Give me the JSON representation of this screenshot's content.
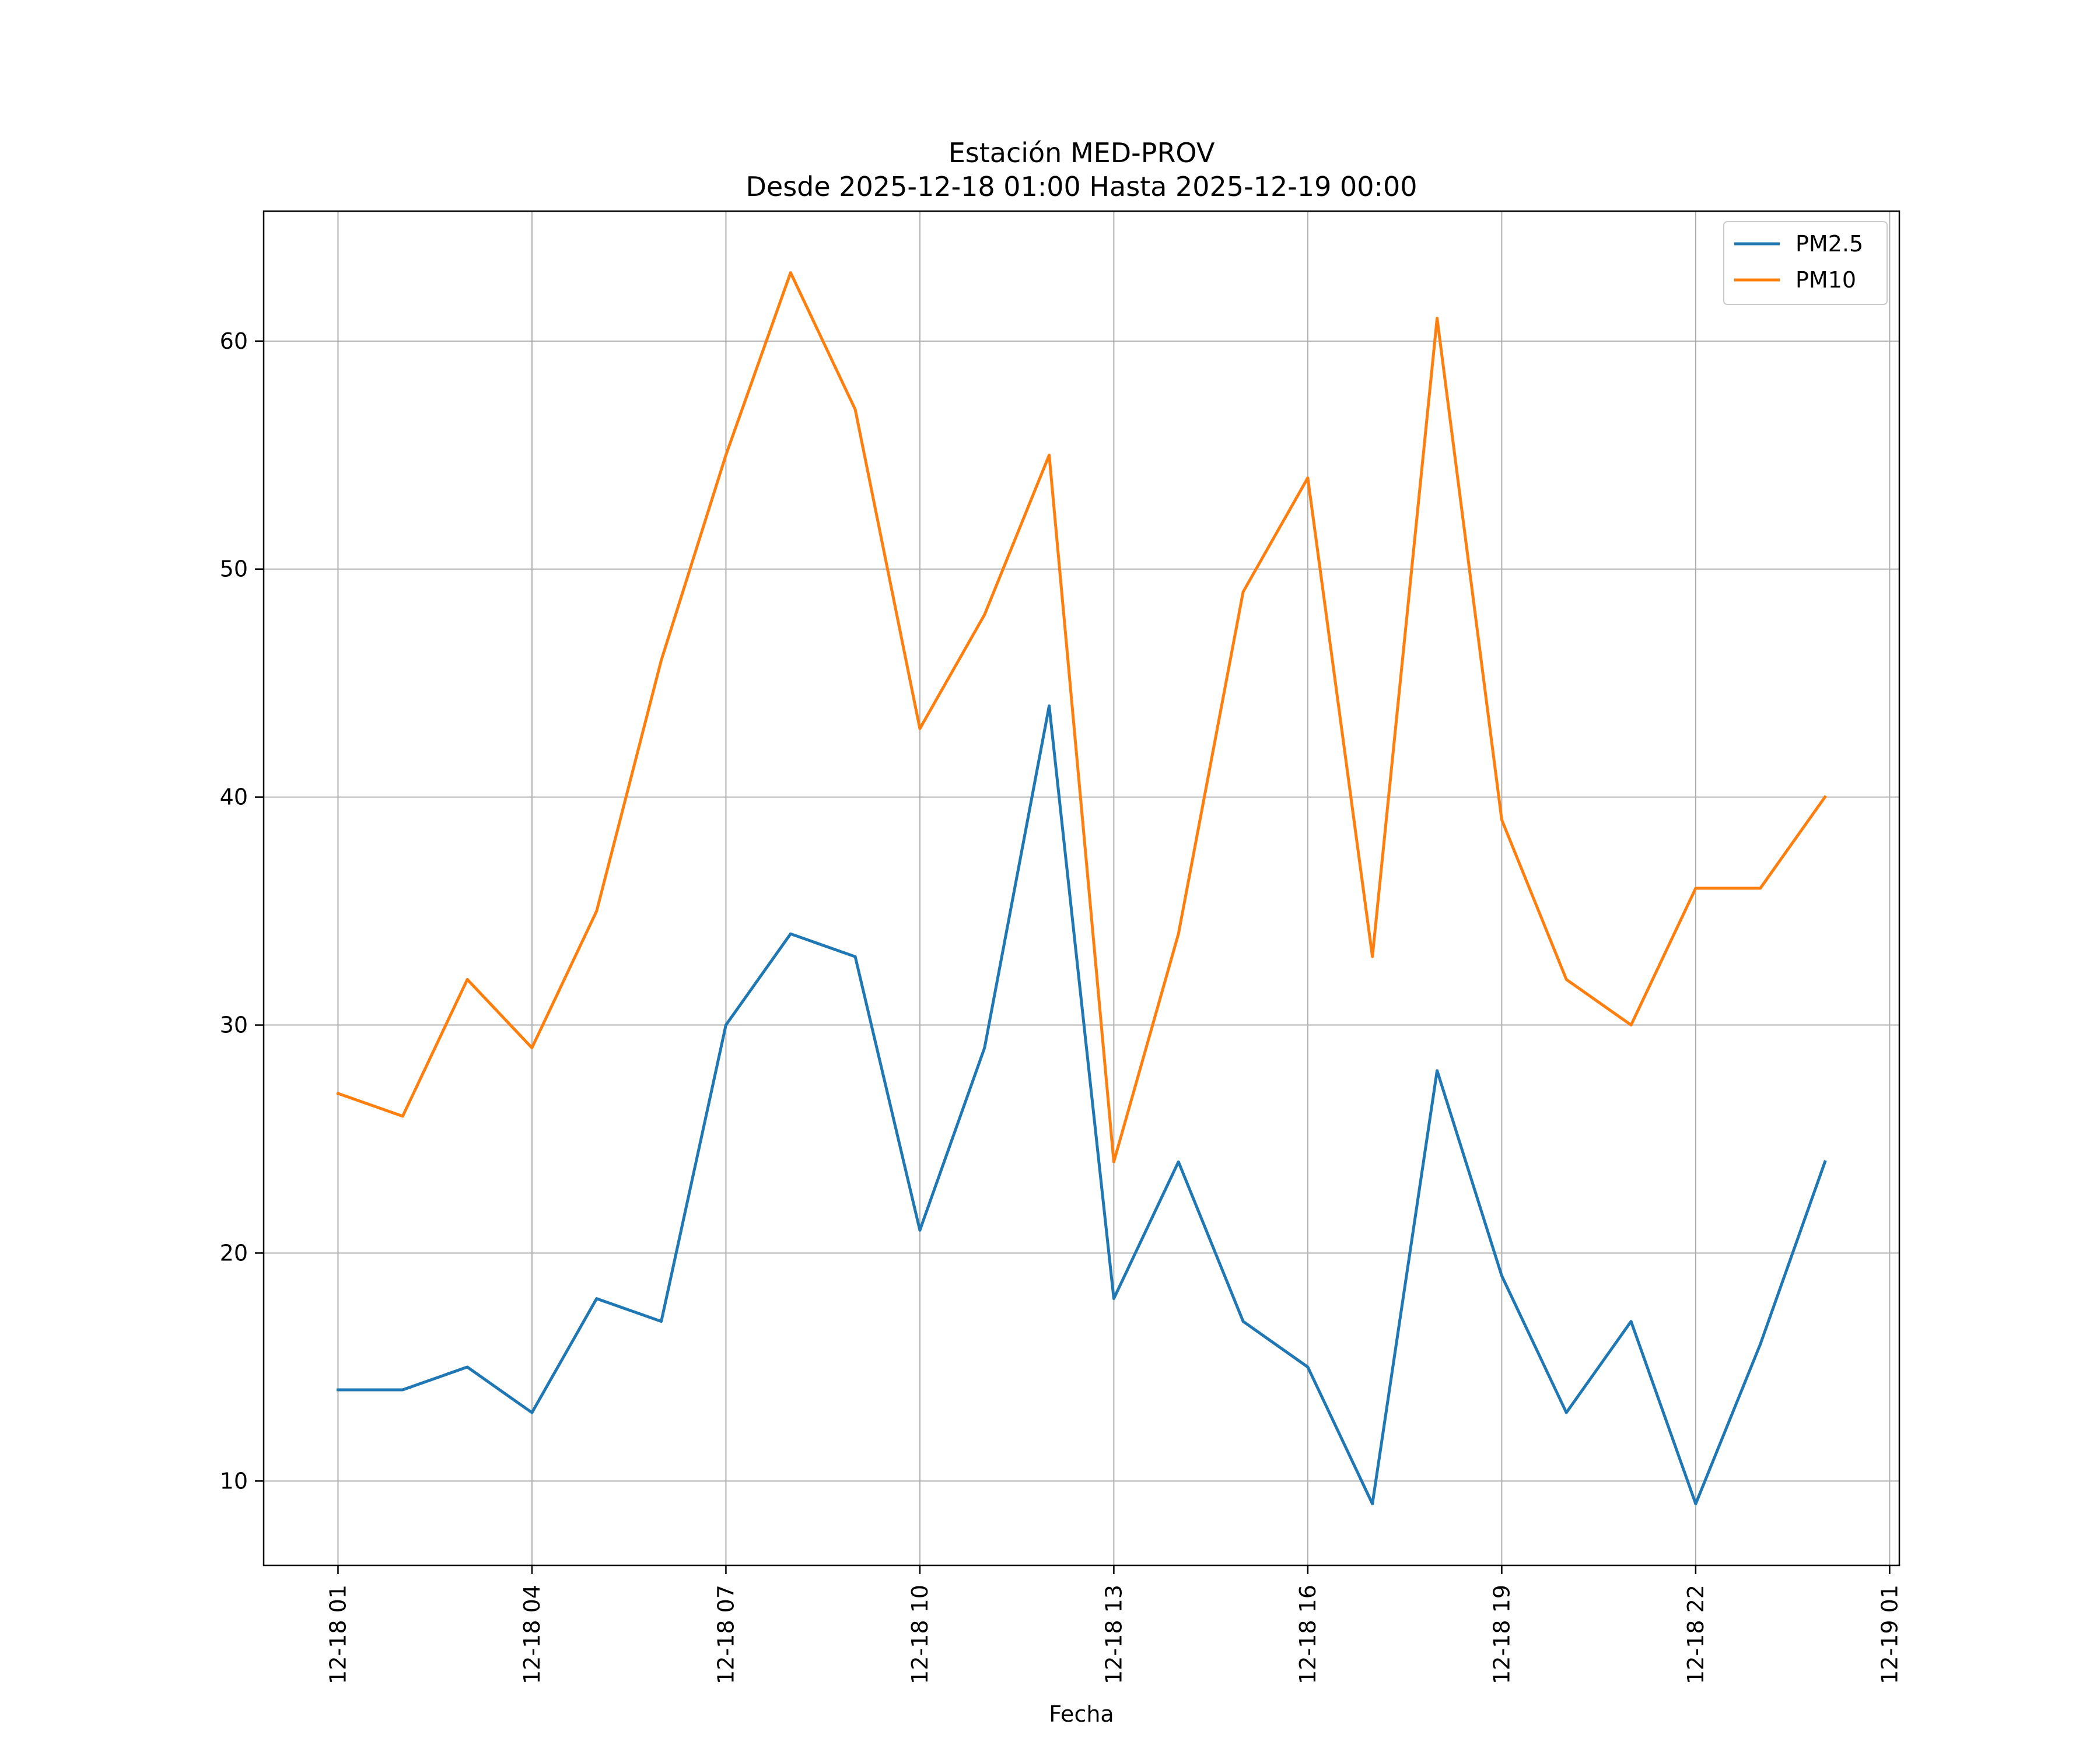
{
  "chart_data": {
    "type": "line",
    "title": "Estación MED-PROV",
    "subtitle": "Desde 2025-12-18 01:00 Hasta 2025-12-19 00:00",
    "xlabel": "Fecha",
    "ylabel": "",
    "x": [
      "2025-12-18 01:00",
      "2025-12-18 02:00",
      "2025-12-18 03:00",
      "2025-12-18 04:00",
      "2025-12-18 05:00",
      "2025-12-18 06:00",
      "2025-12-18 07:00",
      "2025-12-18 08:00",
      "2025-12-18 09:00",
      "2025-12-18 10:00",
      "2025-12-18 11:00",
      "2025-12-18 12:00",
      "2025-12-18 13:00",
      "2025-12-18 14:00",
      "2025-12-18 15:00",
      "2025-12-18 16:00",
      "2025-12-18 17:00",
      "2025-12-18 18:00",
      "2025-12-18 19:00",
      "2025-12-18 20:00",
      "2025-12-18 21:00",
      "2025-12-18 22:00",
      "2025-12-18 23:00",
      "2025-12-19 00:00"
    ],
    "x_hours": [
      1,
      2,
      3,
      4,
      5,
      6,
      7,
      8,
      9,
      10,
      11,
      12,
      13,
      14,
      15,
      16,
      17,
      18,
      19,
      20,
      21,
      22,
      23,
      24
    ],
    "xlim": [
      -0.15,
      25.15
    ],
    "xticks": [
      {
        "hour": 1,
        "label": "12-18 01"
      },
      {
        "hour": 4,
        "label": "12-18 04"
      },
      {
        "hour": 7,
        "label": "12-18 07"
      },
      {
        "hour": 10,
        "label": "12-18 10"
      },
      {
        "hour": 13,
        "label": "12-18 13"
      },
      {
        "hour": 16,
        "label": "12-18 16"
      },
      {
        "hour": 19,
        "label": "12-18 19"
      },
      {
        "hour": 22,
        "label": "12-18 22"
      },
      {
        "hour": 25,
        "label": "12-19 01"
      }
    ],
    "ylim": [
      6.3,
      65.7
    ],
    "yticks": [
      {
        "value": 10,
        "label": "10"
      },
      {
        "value": 20,
        "label": "20"
      },
      {
        "value": 30,
        "label": "30"
      },
      {
        "value": 40,
        "label": "40"
      },
      {
        "value": 50,
        "label": "50"
      },
      {
        "value": 60,
        "label": "60"
      }
    ],
    "grid": true,
    "legend_position": "top-right",
    "series": [
      {
        "name": "PM2.5",
        "color": "#1f77b4",
        "values": [
          14,
          14,
          15,
          13,
          18,
          17,
          30,
          34,
          33,
          21,
          29,
          44,
          18,
          24,
          17,
          15,
          9,
          28,
          19,
          13,
          17,
          9,
          16,
          24
        ]
      },
      {
        "name": "PM10",
        "color": "#ff7f0e",
        "values": [
          27,
          26,
          32,
          29,
          35,
          46,
          55,
          63,
          57,
          43,
          48,
          55,
          24,
          34,
          49,
          54,
          33,
          61,
          39,
          32,
          30,
          36,
          36,
          40
        ]
      }
    ]
  }
}
